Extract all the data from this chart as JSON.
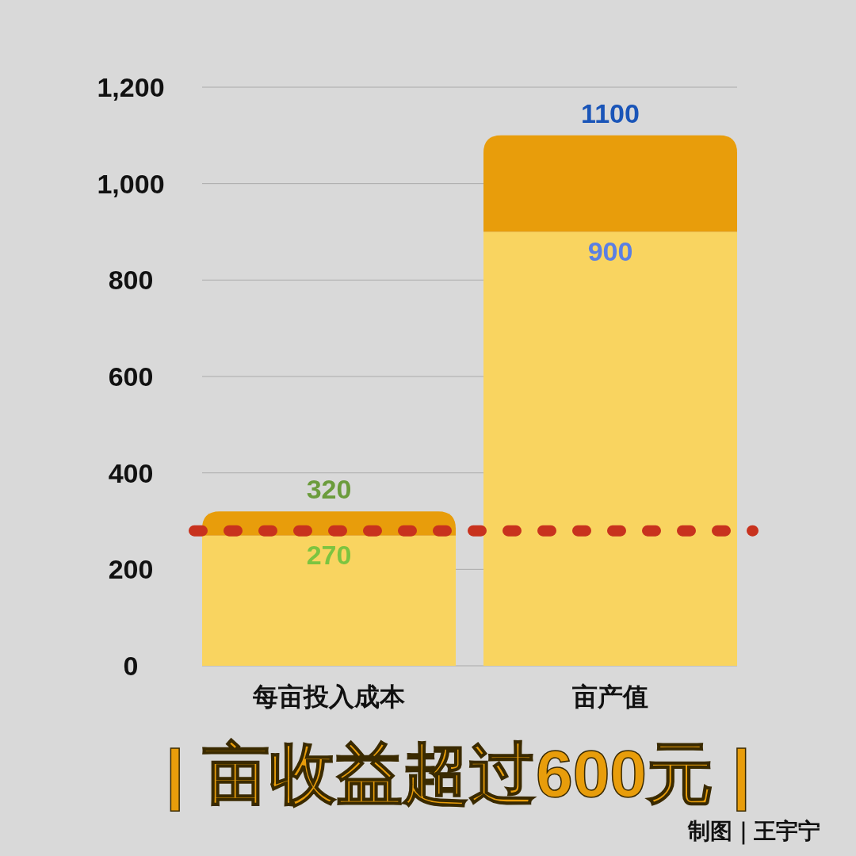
{
  "chart_data": {
    "type": "bar",
    "stacked": true,
    "title": "| 亩收益超过600元 |",
    "categories": [
      "每亩投入成本",
      "亩产值"
    ],
    "series": [
      {
        "color": "#f9d460",
        "values": [
          270,
          900
        ],
        "value_labels": [
          "270",
          "900"
        ]
      },
      {
        "color": "#e89d0b",
        "values": [
          50,
          200
        ]
      }
    ],
    "totals": [
      "320",
      "1100"
    ],
    "ylim": [
      0,
      1200
    ],
    "yticks": [
      0,
      200,
      400,
      600,
      800,
      {
        "value": 1000,
        "label": "1,000"
      },
      {
        "value": 1200,
        "label": "1,200"
      }
    ],
    "grid": "y",
    "ref_lines": [
      {
        "axis": "y",
        "value": 280,
        "color": "#c8321e",
        "line_style": "dotted"
      }
    ],
    "annotations": [
      "制图｜王宇宁"
    ]
  }
}
